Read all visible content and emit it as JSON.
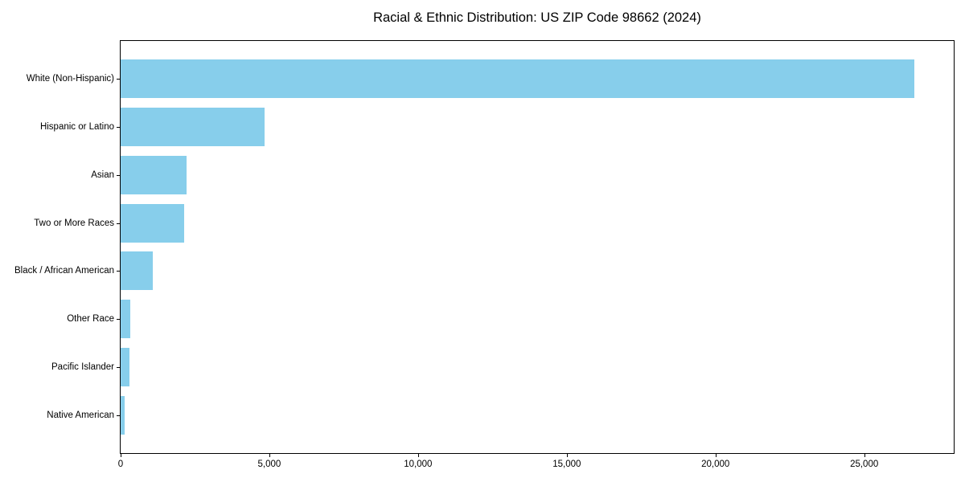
{
  "chart_data": {
    "type": "bar",
    "orientation": "horizontal",
    "title": "Racial & Ethnic Distribution: US ZIP Code 98662 (2024)",
    "categories": [
      "White (Non-Hispanic)",
      "Hispanic or Latino",
      "Asian",
      "Two or More Races",
      "Black / African American",
      "Other Race",
      "Pacific Islander",
      "Native American"
    ],
    "values": [
      26680,
      4840,
      2220,
      2130,
      1075,
      335,
      305,
      130
    ],
    "xlabel": "",
    "ylabel": "",
    "xlim": [
      0,
      28010
    ],
    "x_ticks": [
      0,
      5000,
      10000,
      15000,
      20000,
      25000
    ],
    "x_tick_labels": [
      "0",
      "5,000",
      "10,000",
      "15,000",
      "20,000",
      "25,000"
    ],
    "bar_color": "#87CEEB",
    "frame_color": "#000000",
    "background_color": "#ffffff",
    "grid": false,
    "legend_position": "none"
  }
}
